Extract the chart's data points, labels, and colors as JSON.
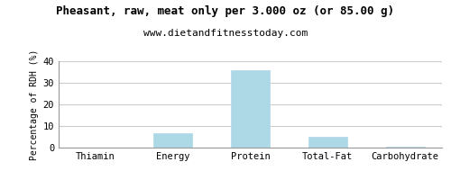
{
  "title": "Pheasant, raw, meat only per 3.000 oz (or 85.00 g)",
  "subtitle": "www.dietandfitnesstoday.com",
  "categories": [
    "Thiamin",
    "Energy",
    "Protein",
    "Total-Fat",
    "Carbohydrate"
  ],
  "values": [
    0,
    6.5,
    36,
    5.2,
    0.5
  ],
  "bar_color": "#add8e6",
  "bar_edge_color": "#b0d8e8",
  "ylabel": "Percentage of RDH (%)",
  "ylim": [
    0,
    40
  ],
  "yticks": [
    0,
    10,
    20,
    30,
    40
  ],
  "background_color": "#ffffff",
  "plot_bg_color": "#ffffff",
  "grid_color": "#cccccc",
  "title_fontsize": 9,
  "subtitle_fontsize": 8,
  "ylabel_fontsize": 7,
  "tick_fontsize": 7.5,
  "border_color": "#999999"
}
